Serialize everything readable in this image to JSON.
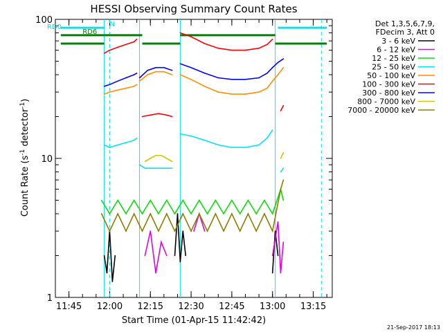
{
  "chart_data": {
    "type": "line",
    "title": "HESSI Observing Summary Count Rates",
    "xlabel": "Start Time (01-Apr-15 11:42:42)",
    "ylabel": "Count Rate (s",
    "ylabel_sup": "-1",
    "ylabel_tail": " detector",
    "ylabel_end": ")",
    "y_scale": "log",
    "ylim": [
      1,
      100
    ],
    "xlim": [
      "11:40",
      "13:22"
    ],
    "y_ticks": [
      {
        "value": 1,
        "label": "1"
      },
      {
        "value": 10,
        "label": "10"
      },
      {
        "value": 100,
        "label": "100"
      }
    ],
    "x_ticks": [
      {
        "value": "11:45",
        "label": "11:45"
      },
      {
        "value": "12:00",
        "label": "12:00"
      },
      {
        "value": "12:15",
        "label": "12:15"
      },
      {
        "value": "12:30",
        "label": "12:30"
      },
      {
        "value": "12:45",
        "label": "12:45"
      },
      {
        "value": "13:00",
        "label": "13:00"
      },
      {
        "value": "13:15",
        "label": "13:15"
      }
    ],
    "legend_header": [
      "Det 1,3,5,6,7,9,",
      "FDecim 3, Att 0"
    ],
    "legend_position": "right",
    "series": [
      {
        "name": "3 - 6 keV",
        "color": "#000000",
        "segments": [
          {
            "x": [
              "11:58",
              "11:59",
              "12:00",
              "12:01",
              "12:02"
            ],
            "y": [
              2,
              1.5,
              3,
              1.3,
              2
            ]
          },
          {
            "x": [
              "12:24",
              "12:25",
              "12:26",
              "12:27",
              "12:28"
            ],
            "y": [
              2,
              4,
              1.8,
              3,
              2
            ]
          },
          {
            "x": [
              "13:00",
              "13:01",
              "13:02"
            ],
            "y": [
              1.5,
              3,
              2
            ]
          }
        ]
      },
      {
        "name": "6 - 12 keV",
        "color": "#e000e0",
        "segments": [
          {
            "x": [
              "12:13",
              "12:15",
              "12:17",
              "12:19",
              "12:21"
            ],
            "y": [
              2,
              3,
              1.5,
              2.5,
              2
            ]
          },
          {
            "x": [
              "12:31",
              "12:33",
              "12:35"
            ],
            "y": [
              3,
              4,
              3
            ]
          },
          {
            "x": [
              "13:00",
              "13:02",
              "13:03",
              "13:04"
            ],
            "y": [
              2,
              3.5,
              1.5,
              2.5
            ]
          }
        ]
      },
      {
        "name": "12 - 25 keV",
        "color": "#00e000",
        "segments": [
          {
            "x": [
              "11:57",
              "12:00",
              "12:03",
              "12:06",
              "12:09",
              "12:12",
              "12:15",
              "12:18",
              "12:21",
              "12:24",
              "12:27",
              "12:30",
              "12:33",
              "12:36",
              "12:39",
              "12:42",
              "12:45",
              "12:48",
              "12:51",
              "12:54",
              "12:57",
              "13:00",
              "13:03",
              "13:04"
            ],
            "y": [
              5,
              4,
              5,
              4,
              5,
              4,
              5,
              4,
              5,
              4,
              5,
              4,
              5,
              4,
              5,
              4,
              5,
              4,
              5,
              4,
              5,
              4,
              6,
              5
            ]
          }
        ]
      },
      {
        "name": "25 - 50 keV",
        "color": "#00e5ee",
        "segments": [
          {
            "x": [
              "11:58",
              "12:00",
              "12:03",
              "12:06",
              "12:09",
              "12:10"
            ],
            "y": [
              12.5,
              12,
              12.5,
              13,
              13.5,
              14
            ]
          },
          {
            "x": [
              "12:11",
              "12:13",
              "12:16",
              "12:19",
              "12:22",
              "12:23"
            ],
            "y": [
              9,
              8.5,
              8.5,
              8.5,
              8.5,
              8.5
            ]
          },
          {
            "x": [
              "12:26",
              "12:30",
              "12:35",
              "12:40",
              "12:45",
              "12:50",
              "12:55",
              "12:58",
              "13:00"
            ],
            "y": [
              15,
              14.5,
              13.5,
              12.5,
              12,
              12,
              12.5,
              14,
              16
            ]
          },
          {
            "x": [
              "13:03",
              "13:04"
            ],
            "y": [
              8,
              8.5
            ]
          }
        ]
      },
      {
        "name": "50 - 100 keV",
        "color": "#ff8c00",
        "segments": [
          {
            "x": [
              "11:58",
              "12:00",
              "12:03",
              "12:06",
              "12:09",
              "12:10"
            ],
            "y": [
              29,
              30,
              31,
              32,
              33,
              34
            ]
          },
          {
            "x": [
              "12:11",
              "12:14",
              "12:17",
              "12:20",
              "12:23"
            ],
            "y": [
              36,
              40,
              42,
              42,
              40
            ]
          },
          {
            "x": [
              "12:26",
              "12:30",
              "12:35",
              "12:40",
              "12:45",
              "12:50",
              "12:55",
              "12:58",
              "13:00"
            ],
            "y": [
              40,
              37,
              33,
              30,
              29,
              29,
              30,
              32,
              36
            ]
          },
          {
            "x": [
              "13:00",
              "13:02",
              "13:04"
            ],
            "y": [
              36,
              40,
              45
            ]
          }
        ]
      },
      {
        "name": "100 - 300 keV",
        "color": "#ff0000",
        "segments": [
          {
            "x": [
              "11:58",
              "12:00",
              "12:03",
              "12:06",
              "12:09",
              "12:10"
            ],
            "y": [
              57,
              60,
              63,
              66,
              69,
              72
            ]
          },
          {
            "x": [
              "12:12",
              "12:15",
              "12:18",
              "12:21",
              "12:23"
            ],
            "y": [
              20,
              20.5,
              21,
              20.5,
              20
            ]
          },
          {
            "x": [
              "12:26",
              "12:30",
              "12:35",
              "12:40",
              "12:45",
              "12:50",
              "12:55",
              "12:58",
              "13:00"
            ],
            "y": [
              80,
              75,
              67,
              62,
              60,
              60,
              62,
              66,
              72
            ]
          },
          {
            "x": [
              "13:03",
              "13:04"
            ],
            "y": [
              22,
              24
            ]
          }
        ]
      },
      {
        "name": "300 - 800 keV",
        "color": "#0000ff",
        "segments": [
          {
            "x": [
              "11:58",
              "12:00",
              "12:03",
              "12:06",
              "12:09",
              "12:10"
            ],
            "y": [
              33,
              34,
              36,
              38,
              40,
              41
            ]
          },
          {
            "x": [
              "12:11",
              "12:14",
              "12:17",
              "12:20",
              "12:23"
            ],
            "y": [
              38,
              43,
              45,
              45,
              43
            ]
          },
          {
            "x": [
              "12:26",
              "12:30",
              "12:35",
              "12:40",
              "12:45",
              "12:50",
              "12:55",
              "12:58",
              "13:00"
            ],
            "y": [
              48,
              45,
              41,
              38,
              37,
              37,
              38,
              41,
              45
            ]
          },
          {
            "x": [
              "13:00",
              "13:02",
              "13:04"
            ],
            "y": [
              45,
              49,
              52
            ]
          }
        ]
      },
      {
        "name": "800 - 7000 keV",
        "color": "#d4c400",
        "segments": [
          {
            "x": [
              "12:13",
              "12:15",
              "12:17",
              "12:19",
              "12:21",
              "12:23"
            ],
            "y": [
              9.5,
              10,
              10.5,
              10.5,
              10,
              9.5
            ]
          },
          {
            "x": [
              "13:03",
              "13:04"
            ],
            "y": [
              10,
              11
            ]
          }
        ]
      },
      {
        "name": "7000 - 20000 keV",
        "color": "#8b7d00",
        "segments": [
          {
            "x": [
              "11:57",
              "12:00",
              "12:03",
              "12:06",
              "12:09",
              "12:12",
              "12:15",
              "12:18",
              "12:21",
              "12:24",
              "12:27",
              "12:30",
              "12:33",
              "12:36",
              "12:39",
              "12:42",
              "12:45",
              "12:48",
              "12:51",
              "12:54",
              "12:57",
              "13:00",
              "13:03",
              "13:04"
            ],
            "y": [
              4,
              3,
              4,
              3,
              4,
              3,
              4,
              3,
              4,
              3,
              4,
              3,
              4,
              3,
              4,
              3,
              4,
              3,
              4,
              3,
              4,
              3,
              6,
              7
            ]
          }
        ]
      }
    ],
    "flags": [
      {
        "label": "RD0",
        "color": "#00e5ee",
        "y": 87,
        "x": [
          [
            "11:42",
            "11:58"
          ],
          [
            "13:02",
            "13:20"
          ]
        ]
      },
      {
        "label": "N",
        "color": "#00e5ee",
        "y": 87,
        "x": []
      },
      {
        "label": "RD6",
        "color": "#008000",
        "y": 77,
        "x": [
          [
            "11:42",
            "12:12"
          ],
          [
            "12:26",
            "13:01"
          ]
        ]
      },
      {
        "label": "",
        "color": "#008000",
        "y": 67,
        "x": [
          [
            "11:42",
            "11:58"
          ],
          [
            "12:12",
            "12:26"
          ],
          [
            "13:01",
            "13:20"
          ]
        ]
      }
    ],
    "markers": {
      "solid_cyan": [
        "11:58",
        "12:11",
        "12:26",
        "13:01"
      ],
      "dashed_cyan": [
        "12:00",
        "13:18"
      ]
    }
  },
  "timestamp": "21-Sep-2017 18:13"
}
